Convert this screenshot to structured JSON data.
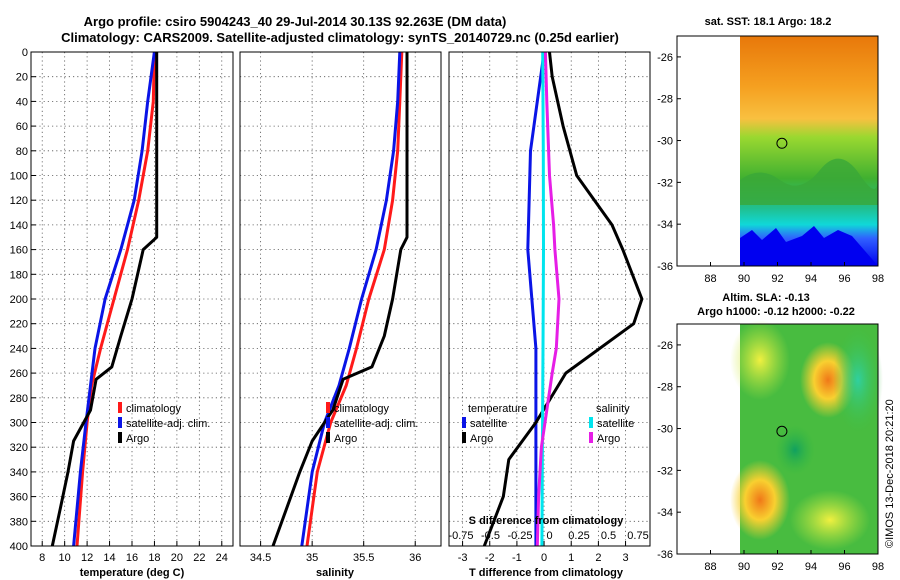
{
  "header": {
    "title_line1": "Argo profile: csiro 5904243_40 29-Jul-2014 30.13S 92.263E (DM data)",
    "title_line2": "Climatology: CARS2009. Satellite-adjusted climatology: synTS_20140729.nc (0.25d earlier)"
  },
  "credit": "©IMOS 13-Dec-2018 20:21:20",
  "colors": {
    "climatology": "#ff1a1a",
    "satellite": "#0a14e6",
    "argo": "#000000",
    "salinity_sat": "#00e5ee",
    "salinity_argo": "#e61ee6"
  },
  "chart_data": [
    {
      "type": "line",
      "id": "temperature",
      "xlabel": "temperature (deg C)",
      "ylabel": "depth",
      "xlim": [
        7,
        25
      ],
      "ylim": [
        0,
        400
      ],
      "xticks": [
        "8",
        "10",
        "12",
        "14",
        "16",
        "18",
        "20",
        "22",
        "24"
      ],
      "yticks": [
        "0",
        "20",
        "40",
        "60",
        "80",
        "100",
        "120",
        "140",
        "160",
        "180",
        "200",
        "220",
        "240",
        "260",
        "280",
        "300",
        "320",
        "340",
        "360",
        "380",
        "400"
      ],
      "legend": [
        "climatology",
        "satellite-adj. clim.",
        "Argo"
      ],
      "series": [
        {
          "name": "climatology",
          "color": "#ff1a1a",
          "depth": [
            0,
            40,
            80,
            120,
            160,
            200,
            240,
            270,
            300,
            340,
            400
          ],
          "values": [
            18.0,
            17.9,
            17.4,
            16.6,
            15.6,
            14.4,
            13.2,
            12.4,
            12.0,
            11.6,
            11.1
          ]
        },
        {
          "name": "satellite-adj. clim.",
          "color": "#0a14e6",
          "depth": [
            0,
            40,
            80,
            120,
            160,
            200,
            240,
            270,
            300,
            340,
            400
          ],
          "values": [
            18.0,
            17.4,
            16.9,
            16.2,
            15.0,
            13.6,
            12.7,
            12.3,
            11.9,
            11.4,
            10.8
          ]
        },
        {
          "name": "Argo",
          "color": "#000000",
          "depth": [
            0,
            60,
            100,
            150,
            160,
            200,
            230,
            255,
            265,
            290,
            315,
            340,
            370,
            400
          ],
          "values": [
            18.2,
            18.2,
            18.2,
            18.2,
            17.0,
            16.0,
            15.0,
            14.2,
            12.8,
            12.3,
            10.8,
            10.3,
            9.6,
            8.9
          ]
        }
      ]
    },
    {
      "type": "line",
      "id": "salinity",
      "xlabel": "salinity",
      "xlim": [
        34.3,
        36.25
      ],
      "ylim": [
        0,
        400
      ],
      "xticks": [
        "34.5",
        "35",
        "35.5",
        "36"
      ],
      "legend": [
        "climatology",
        "satellite-adj. clim.",
        "Argo"
      ],
      "series": [
        {
          "name": "climatology",
          "color": "#ff1a1a",
          "depth": [
            0,
            40,
            80,
            120,
            160,
            200,
            240,
            270,
            300,
            340,
            400
          ],
          "values": [
            35.87,
            35.85,
            35.83,
            35.78,
            35.7,
            35.55,
            35.43,
            35.33,
            35.18,
            35.05,
            34.95
          ]
        },
        {
          "name": "satellite-adj. clim.",
          "color": "#0a14e6",
          "depth": [
            0,
            40,
            80,
            120,
            160,
            200,
            240,
            270,
            300,
            340,
            400
          ],
          "values": [
            35.85,
            35.83,
            35.79,
            35.72,
            35.62,
            35.48,
            35.36,
            35.26,
            35.12,
            35.0,
            34.9
          ]
        },
        {
          "name": "Argo",
          "color": "#000000",
          "depth": [
            0,
            60,
            100,
            150,
            160,
            200,
            230,
            255,
            265,
            290,
            315,
            340,
            370,
            400
          ],
          "values": [
            35.92,
            35.92,
            35.92,
            35.92,
            35.86,
            35.78,
            35.7,
            35.58,
            35.3,
            35.2,
            35.0,
            34.88,
            34.75,
            34.62
          ]
        }
      ]
    },
    {
      "type": "line",
      "id": "difference",
      "xlabel": "T difference from climatology",
      "xlabel_top": "S difference from climatology",
      "xlim": [
        -3.5,
        3.9
      ],
      "ylim": [
        0,
        400
      ],
      "xticks": [
        "-3",
        "-2",
        "-1",
        "0",
        "1",
        "2",
        "3"
      ],
      "xticks_top": [
        "-0.75",
        "-0.5",
        "-0.25",
        "0",
        "0.25",
        "0.5",
        "0.75"
      ],
      "legend_left_title": "temperature",
      "legend_right_title": "salinity",
      "legend": [
        "satellite",
        "Argo",
        "satellite",
        "Argo"
      ],
      "series": [
        {
          "name": "T satellite",
          "color": "#0a14e6",
          "depth": [
            0,
            80,
            160,
            240,
            320,
            400
          ],
          "values": [
            0.0,
            -0.5,
            -0.6,
            -0.3,
            -0.3,
            -0.3
          ]
        },
        {
          "name": "T Argo",
          "color": "#000000",
          "depth": [
            0,
            20,
            60,
            100,
            140,
            160,
            200,
            220,
            260,
            300,
            330,
            360,
            400
          ],
          "values": [
            0.2,
            0.3,
            0.7,
            1.2,
            2.5,
            2.9,
            3.6,
            3.3,
            0.8,
            -0.3,
            -1.3,
            -1.5,
            -2.2
          ]
        },
        {
          "name": "S satellite",
          "color": "#00e5ee",
          "depth": [
            0,
            80,
            160,
            240,
            320,
            400
          ],
          "values": [
            -0.05,
            -0.03,
            -0.02,
            -0.04,
            -0.06,
            -0.08
          ]
        },
        {
          "name": "S Argo",
          "color": "#e61ee6",
          "depth": [
            0,
            40,
            100,
            140,
            160,
            200,
            240,
            260,
            290,
            320,
            360,
            400
          ],
          "values": [
            0.05,
            0.1,
            0.2,
            0.35,
            0.4,
            0.55,
            0.45,
            0.3,
            0.1,
            -0.1,
            -0.2,
            -0.25
          ]
        }
      ]
    },
    {
      "type": "heatmap",
      "id": "sst-map",
      "title": "sat. SST: 18.1 Argo: 18.2",
      "xlim": [
        86,
        98
      ],
      "ylim": [
        -36,
        -25
      ],
      "xticks": [
        "88",
        "90",
        "92",
        "94",
        "96",
        "98"
      ],
      "yticks": [
        "-26",
        "-28",
        "-30",
        "-32",
        "-34",
        "-36"
      ],
      "marker": {
        "lon": 92.263,
        "lat": -30.13
      }
    },
    {
      "type": "heatmap",
      "id": "sla-map",
      "title_line1": "Altim. SLA: -0.13",
      "title_line2": "Argo h1000: -0.12 h2000: -0.22",
      "xlim": [
        86,
        98
      ],
      "ylim": [
        -36,
        -25
      ],
      "xticks": [
        "88",
        "90",
        "92",
        "94",
        "96",
        "98"
      ],
      "yticks": [
        "-26",
        "-28",
        "-30",
        "-32",
        "-34",
        "-36"
      ],
      "marker": {
        "lon": 92.263,
        "lat": -30.13
      }
    }
  ]
}
